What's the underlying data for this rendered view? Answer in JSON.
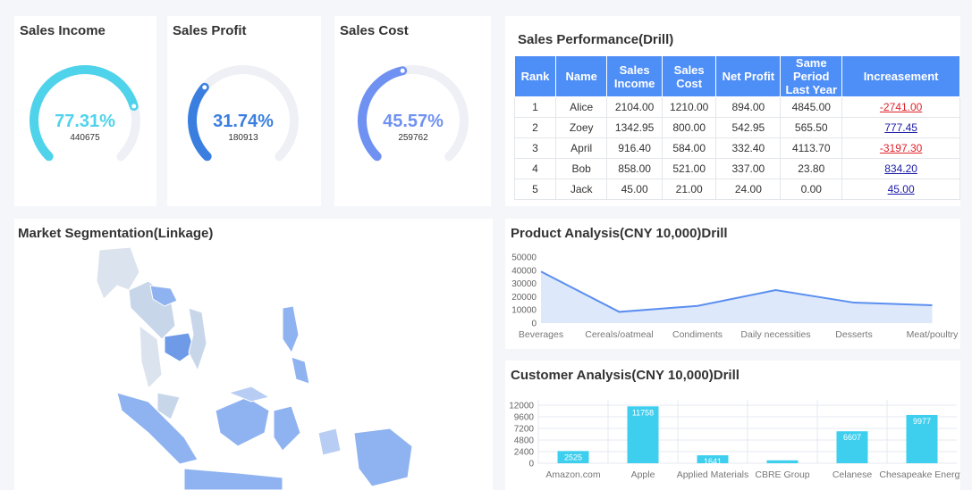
{
  "gauges": [
    {
      "title": "Sales Income",
      "value": 77.31,
      "value_label": "77.31%",
      "amount": 440675,
      "color": "#4fd3ea"
    },
    {
      "title": "Sales Profit",
      "value": 31.74,
      "value_label": "31.74%",
      "amount": 180913,
      "color": "#3a7fe0"
    },
    {
      "title": "Sales Cost",
      "value": 45.57,
      "value_label": "45.57%",
      "amount": 259762,
      "color": "#6f91f2"
    }
  ],
  "table": {
    "title": "Sales Performance(Drill)",
    "columns": [
      "Rank",
      "Name",
      "Sales Income",
      "Sales Cost",
      "Net Profit",
      "Same Period Last Year",
      "Increasement"
    ],
    "rows": [
      [
        "1",
        "Alice",
        "2104.00",
        "1210.00",
        "894.00",
        "4845.00",
        "-2741.00"
      ],
      [
        "2",
        "Zoey",
        "1342.95",
        "800.00",
        "542.95",
        "565.50",
        "777.45"
      ],
      [
        "3",
        "April",
        "916.40",
        "584.00",
        "332.40",
        "4113.70",
        "-3197.30"
      ],
      [
        "4",
        "Bob",
        "858.00",
        "521.00",
        "337.00",
        "23.80",
        "834.20"
      ],
      [
        "5",
        "Jack",
        "45.00",
        "21.00",
        "24.00",
        "0.00",
        "45.00"
      ]
    ]
  },
  "map": {
    "title": "Market Segmentation(Linkage)"
  },
  "chart_data": [
    {
      "type": "line",
      "title": "Product Analysis(CNY 10,000)Drill",
      "categories": [
        "Beverages",
        "Cereals/oatmeal",
        "Condiments",
        "Daily necessities",
        "Desserts",
        "Meat/poultry"
      ],
      "values": [
        39000,
        8500,
        13000,
        25000,
        15500,
        13500
      ],
      "color": "#5b8ff0",
      "ylim": [
        0,
        50000
      ],
      "yticks": [
        0,
        10000,
        20000,
        30000,
        40000,
        50000
      ],
      "grid": false
    },
    {
      "type": "bar",
      "title": "Customer Analysis(CNY 10,000)Drill",
      "categories": [
        "Amazon.com",
        "Apple",
        "Applied Materials",
        "CBRE Group",
        "Celanese",
        "Chesapeake Energy"
      ],
      "values": [
        2525,
        11758,
        1641,
        600,
        6607,
        9977
      ],
      "value_labels": [
        "2525",
        "11758",
        "1641",
        null,
        "6607",
        "9977"
      ],
      "color": "#3ecfee",
      "ylim": [
        0,
        12000
      ],
      "yticks": [
        0,
        2400,
        4800,
        7200,
        9600,
        12000
      ],
      "grid": true
    }
  ]
}
